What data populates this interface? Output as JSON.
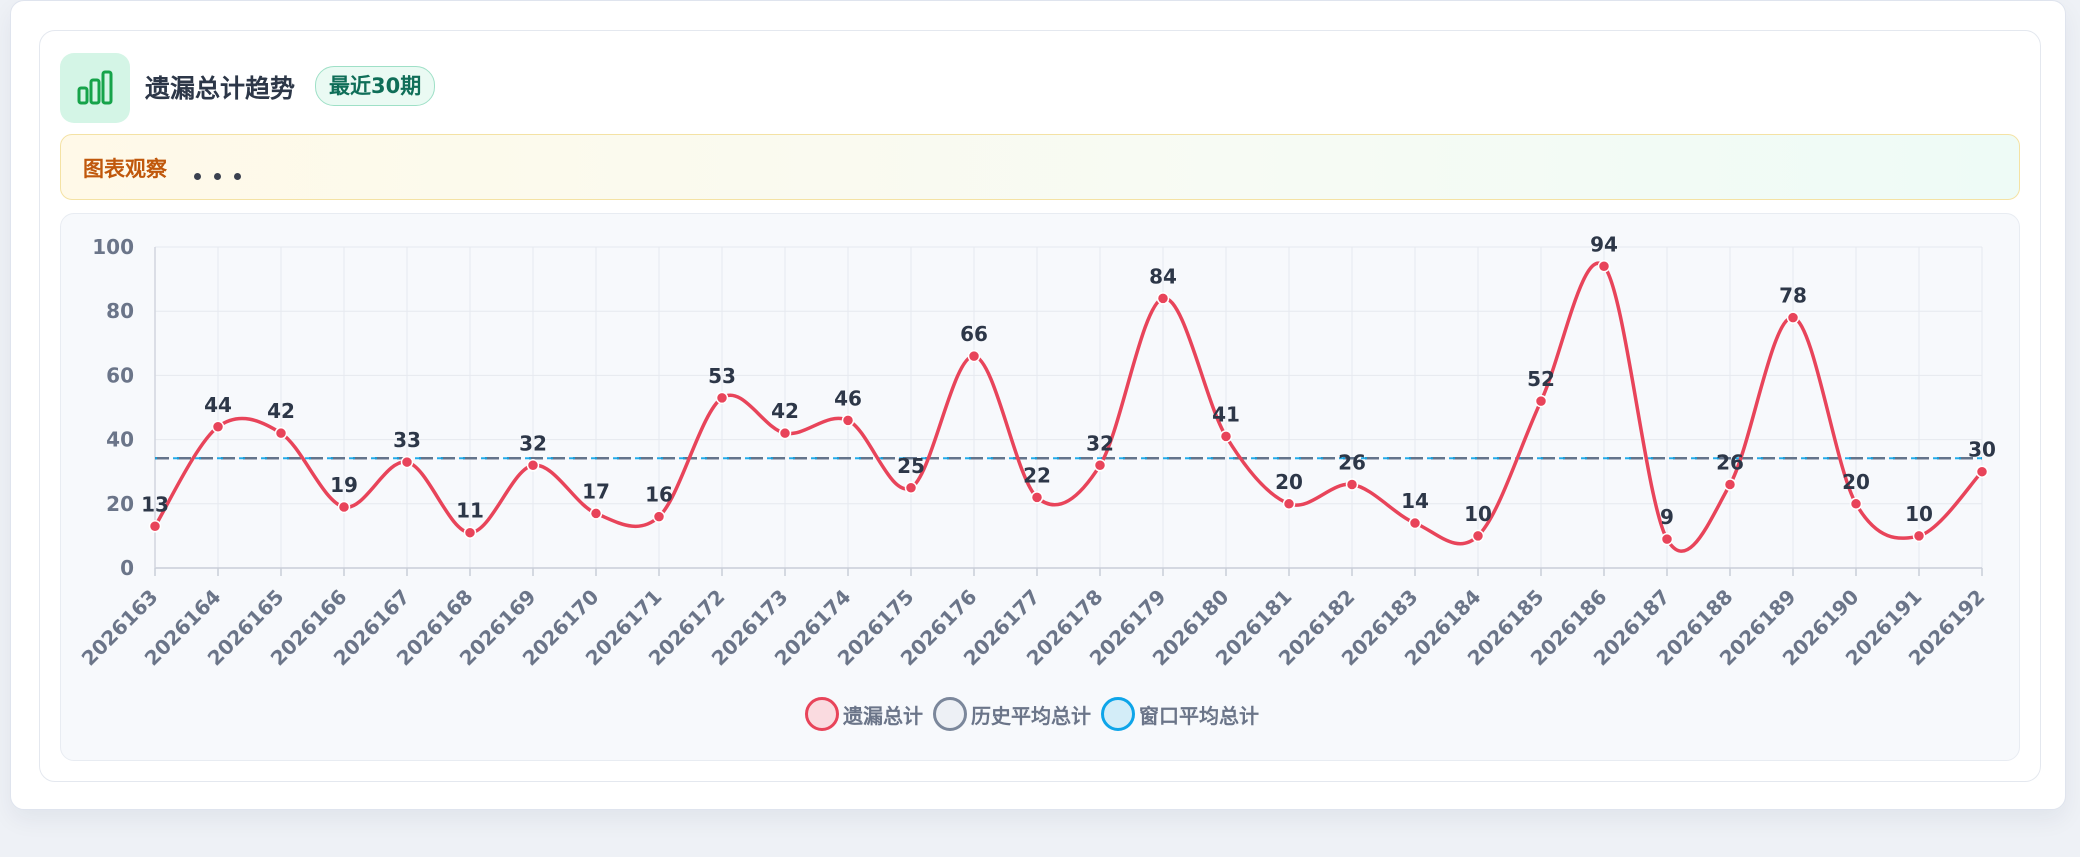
{
  "header": {
    "title": "遗漏总计趋势",
    "badge": "最近30期",
    "icon": "bar-chart-icon"
  },
  "observation": {
    "label": "图表观察",
    "more_icon": "more-dots-icon"
  },
  "colors": {
    "series": "#e8445a",
    "history_avg": "#64748b",
    "window_avg": "#0ea5e9",
    "badge_text": "#0f6e58",
    "observe_text": "#c0580c"
  },
  "chart_data": {
    "type": "line",
    "x": [
      "2026163",
      "2026164",
      "2026165",
      "2026166",
      "2026167",
      "2026168",
      "2026169",
      "2026170",
      "2026171",
      "2026172",
      "2026173",
      "2026174",
      "2026175",
      "2026176",
      "2026177",
      "2026178",
      "2026179",
      "2026180",
      "2026181",
      "2026182",
      "2026183",
      "2026184",
      "2026185",
      "2026186",
      "2026187",
      "2026188",
      "2026189",
      "2026190",
      "2026191",
      "2026192"
    ],
    "series": [
      {
        "name": "遗漏总计",
        "values": [
          13,
          44,
          42,
          19,
          33,
          11,
          32,
          17,
          16,
          53,
          42,
          46,
          25,
          66,
          22,
          32,
          84,
          41,
          20,
          26,
          14,
          10,
          52,
          94,
          9,
          26,
          78,
          20,
          10,
          30
        ],
        "smooth": true,
        "data_labels": true
      },
      {
        "name": "历史平均总计",
        "constant": 34.2,
        "style": "dashed"
      },
      {
        "name": "窗口平均总计",
        "constant": 34.2,
        "style": "dashed"
      }
    ],
    "yticks": [
      "0",
      "20",
      "40",
      "60",
      "80",
      "100"
    ],
    "ylim": [
      0,
      100
    ],
    "grid": true,
    "legend_position": "bottom-center"
  }
}
